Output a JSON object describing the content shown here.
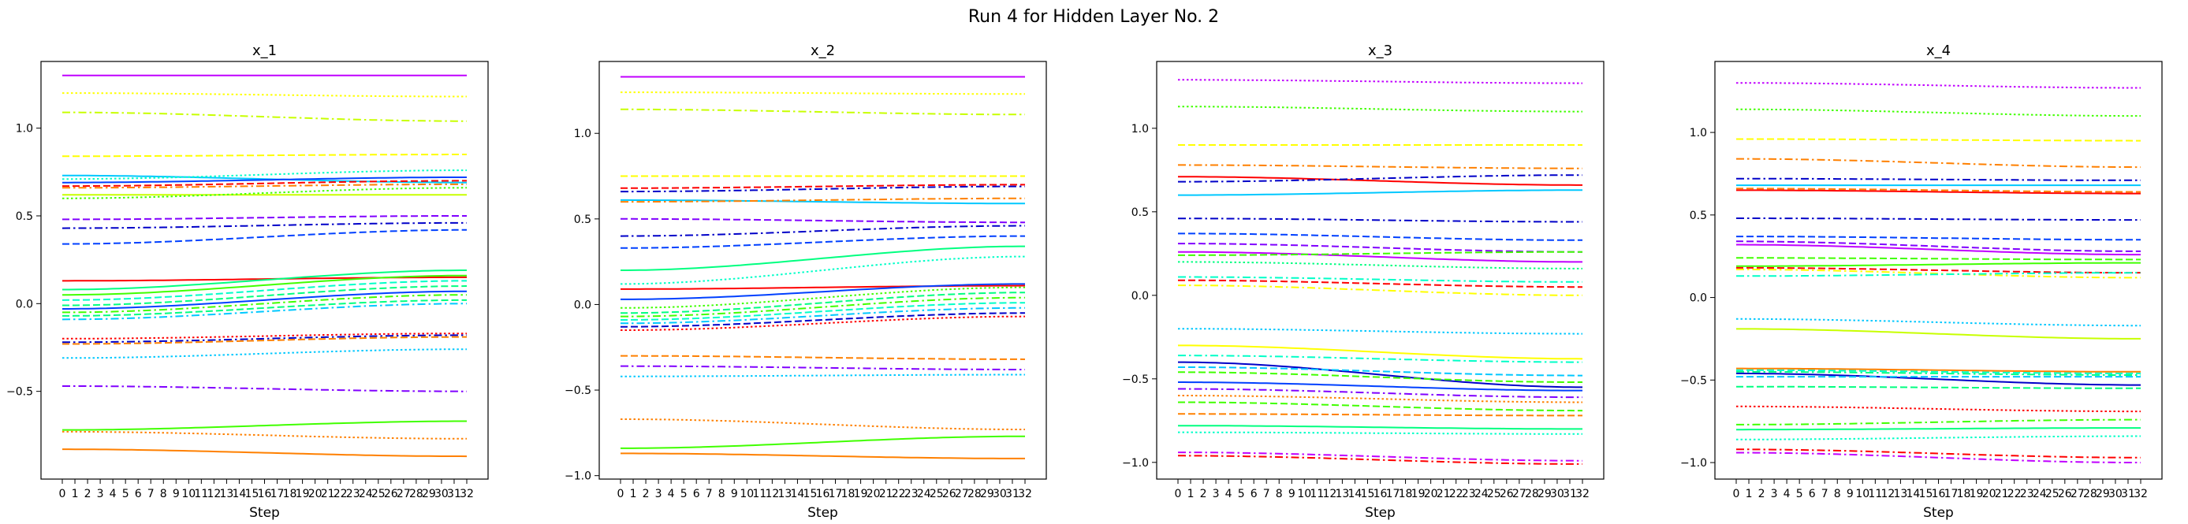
{
  "figure": {
    "title": "Run 4 for Hidden Layer No. 2"
  },
  "palette": [
    "#ff0000",
    "#ff8000",
    "#ffff00",
    "#c8ff00",
    "#40ff00",
    "#00ff80",
    "#00ffc8",
    "#00c8ff",
    "#0040ff",
    "#0000c8",
    "#8000ff",
    "#c000ff"
  ],
  "chart_data": [
    {
      "type": "line",
      "title": "x_1",
      "xlabel": "Step",
      "ylabel": "",
      "xlim": [
        0,
        32
      ],
      "ylim": [
        -1.0,
        1.38
      ],
      "xticks": [
        0,
        1,
        2,
        3,
        4,
        5,
        6,
        7,
        8,
        9,
        10,
        11,
        12,
        13,
        14,
        15,
        16,
        17,
        18,
        19,
        20,
        21,
        22,
        23,
        24,
        25,
        26,
        27,
        28,
        29,
        30,
        31,
        32
      ],
      "yticks": [
        -0.5,
        0.0,
        0.5,
        1.0
      ],
      "ytick_labels": [
        "−0.5",
        "0.0",
        "0.5",
        "1.0"
      ],
      "grid": false,
      "series": [
        {
          "start": 1.3,
          "end": 1.3,
          "color": "#c000ff",
          "dash": "solid"
        },
        {
          "start": 1.2,
          "end": 1.18,
          "color": "#ffff00",
          "dash": "dotted"
        },
        {
          "start": 1.09,
          "end": 1.04,
          "color": "#c8ff00",
          "dash": "dashdot"
        },
        {
          "start": 0.84,
          "end": 0.85,
          "color": "#ffff00",
          "dash": "dashed"
        },
        {
          "start": 0.73,
          "end": 0.69,
          "color": "#00c8ff",
          "dash": "solid"
        },
        {
          "start": 0.71,
          "end": 0.76,
          "color": "#00ffc8",
          "dash": "dotted"
        },
        {
          "start": 0.69,
          "end": 0.72,
          "color": "#0040ff",
          "dash": "solid"
        },
        {
          "start": 0.67,
          "end": 0.7,
          "color": "#ff0000",
          "dash": "dashed"
        },
        {
          "start": 0.66,
          "end": 0.68,
          "color": "#ff8000",
          "dash": "dashdot"
        },
        {
          "start": 0.62,
          "end": 0.62,
          "color": "#c8ff00",
          "dash": "solid"
        },
        {
          "start": 0.6,
          "end": 0.66,
          "color": "#40ff00",
          "dash": "dotted"
        },
        {
          "start": 0.48,
          "end": 0.5,
          "color": "#8000ff",
          "dash": "dashed"
        },
        {
          "start": 0.43,
          "end": 0.46,
          "color": "#0000c8",
          "dash": "dashdot"
        },
        {
          "start": 0.34,
          "end": 0.42,
          "color": "#0040ff",
          "dash": "dashed"
        },
        {
          "start": 0.13,
          "end": 0.15,
          "color": "#ff0000",
          "dash": "solid"
        },
        {
          "start": 0.08,
          "end": 0.19,
          "color": "#00ff80",
          "dash": "solid"
        },
        {
          "start": 0.05,
          "end": 0.16,
          "color": "#40ff00",
          "dash": "solid"
        },
        {
          "start": 0.02,
          "end": 0.13,
          "color": "#00ffc8",
          "dash": "dashed"
        },
        {
          "start": -0.01,
          "end": 0.1,
          "color": "#00ff80",
          "dash": "dashed"
        },
        {
          "start": -0.03,
          "end": 0.07,
          "color": "#0040ff",
          "dash": "solid"
        },
        {
          "start": -0.05,
          "end": 0.05,
          "color": "#40ff00",
          "dash": "dashdot"
        },
        {
          "start": -0.07,
          "end": 0.02,
          "color": "#00ff80",
          "dash": "dashed"
        },
        {
          "start": -0.09,
          "end": 0.0,
          "color": "#00c8ff",
          "dash": "dashdot"
        },
        {
          "start": -0.2,
          "end": -0.17,
          "color": "#ff0000",
          "dash": "dotted"
        },
        {
          "start": -0.22,
          "end": -0.18,
          "color": "#0000c8",
          "dash": "dashdot"
        },
        {
          "start": -0.23,
          "end": -0.19,
          "color": "#ff8000",
          "dash": "dashed"
        },
        {
          "start": -0.31,
          "end": -0.26,
          "color": "#00c8ff",
          "dash": "dotted"
        },
        {
          "start": -0.47,
          "end": -0.5,
          "color": "#8000ff",
          "dash": "dashdot"
        },
        {
          "start": -0.72,
          "end": -0.67,
          "color": "#40ff00",
          "dash": "solid"
        },
        {
          "start": -0.73,
          "end": -0.77,
          "color": "#ff8000",
          "dash": "dotted"
        },
        {
          "start": -0.83,
          "end": -0.87,
          "color": "#ff8000",
          "dash": "solid"
        }
      ]
    },
    {
      "type": "line",
      "title": "x_2",
      "xlabel": "Step",
      "ylabel": "",
      "xlim": [
        0,
        32
      ],
      "ylim": [
        -1.02,
        1.42
      ],
      "xticks": [
        0,
        1,
        2,
        3,
        4,
        5,
        6,
        7,
        8,
        9,
        10,
        11,
        12,
        13,
        14,
        15,
        16,
        17,
        18,
        19,
        20,
        21,
        22,
        23,
        24,
        25,
        26,
        27,
        28,
        29,
        30,
        31,
        32
      ],
      "yticks": [
        -1.0,
        -0.5,
        0.0,
        0.5,
        1.0
      ],
      "ytick_labels": [
        "−1.0",
        "−0.5",
        "0.0",
        "0.5",
        "1.0"
      ],
      "grid": false,
      "series": [
        {
          "start": 1.33,
          "end": 1.33,
          "color": "#c000ff",
          "dash": "solid"
        },
        {
          "start": 1.24,
          "end": 1.23,
          "color": "#ffff00",
          "dash": "dotted"
        },
        {
          "start": 1.14,
          "end": 1.11,
          "color": "#c8ff00",
          "dash": "dashdot"
        },
        {
          "start": 0.75,
          "end": 0.75,
          "color": "#ffff00",
          "dash": "dashed"
        },
        {
          "start": 0.68,
          "end": 0.7,
          "color": "#ff0000",
          "dash": "dashed"
        },
        {
          "start": 0.66,
          "end": 0.69,
          "color": "#0000c8",
          "dash": "dashdot"
        },
        {
          "start": 0.61,
          "end": 0.59,
          "color": "#00c8ff",
          "dash": "solid"
        },
        {
          "start": 0.6,
          "end": 0.62,
          "color": "#ff8000",
          "dash": "dashdot"
        },
        {
          "start": 0.5,
          "end": 0.48,
          "color": "#8000ff",
          "dash": "dashed"
        },
        {
          "start": 0.4,
          "end": 0.46,
          "color": "#0000c8",
          "dash": "dashdot"
        },
        {
          "start": 0.33,
          "end": 0.4,
          "color": "#0040ff",
          "dash": "dashed"
        },
        {
          "start": 0.2,
          "end": 0.34,
          "color": "#00ff80",
          "dash": "solid"
        },
        {
          "start": 0.12,
          "end": 0.28,
          "color": "#00ffc8",
          "dash": "dotted"
        },
        {
          "start": 0.09,
          "end": 0.11,
          "color": "#ff0000",
          "dash": "solid"
        },
        {
          "start": 0.03,
          "end": 0.12,
          "color": "#0040ff",
          "dash": "solid"
        },
        {
          "start": -0.02,
          "end": 0.1,
          "color": "#40ff00",
          "dash": "dotted"
        },
        {
          "start": -0.05,
          "end": 0.07,
          "color": "#00ff80",
          "dash": "dashed"
        },
        {
          "start": -0.07,
          "end": 0.04,
          "color": "#40ff00",
          "dash": "dashdot"
        },
        {
          "start": -0.09,
          "end": 0.01,
          "color": "#00ffc8",
          "dash": "dashed"
        },
        {
          "start": -0.11,
          "end": -0.02,
          "color": "#00c8ff",
          "dash": "dashdot"
        },
        {
          "start": -0.13,
          "end": -0.05,
          "color": "#0000c8",
          "dash": "dashed"
        },
        {
          "start": -0.15,
          "end": -0.07,
          "color": "#ff0000",
          "dash": "dotted"
        },
        {
          "start": -0.3,
          "end": -0.32,
          "color": "#ff8000",
          "dash": "dashed"
        },
        {
          "start": -0.36,
          "end": -0.38,
          "color": "#8000ff",
          "dash": "dashdot"
        },
        {
          "start": -0.42,
          "end": -0.41,
          "color": "#00c8ff",
          "dash": "dotted"
        },
        {
          "start": -0.67,
          "end": -0.73,
          "color": "#ff8000",
          "dash": "dotted"
        },
        {
          "start": -0.84,
          "end": -0.77,
          "color": "#40ff00",
          "dash": "solid"
        },
        {
          "start": -0.87,
          "end": -0.9,
          "color": "#ff8000",
          "dash": "solid"
        }
      ]
    },
    {
      "type": "line",
      "title": "x_3",
      "xlabel": "Step",
      "ylabel": "",
      "xlim": [
        0,
        32
      ],
      "ylim": [
        -1.1,
        1.4
      ],
      "xticks": [
        0,
        1,
        2,
        3,
        4,
        5,
        6,
        7,
        8,
        9,
        10,
        11,
        12,
        13,
        14,
        15,
        16,
        17,
        18,
        19,
        20,
        21,
        22,
        23,
        24,
        25,
        26,
        27,
        28,
        29,
        30,
        31,
        32
      ],
      "yticks": [
        -1.0,
        -0.5,
        0.0,
        0.5,
        1.0
      ],
      "ytick_labels": [
        "−1.0",
        "−0.5",
        "0.0",
        "0.5",
        "1.0"
      ],
      "grid": false,
      "series": [
        {
          "start": 1.29,
          "end": 1.27,
          "color": "#c000ff",
          "dash": "dotted"
        },
        {
          "start": 1.13,
          "end": 1.1,
          "color": "#40ff00",
          "dash": "dotted"
        },
        {
          "start": 0.9,
          "end": 0.9,
          "color": "#ffff00",
          "dash": "dashed"
        },
        {
          "start": 0.78,
          "end": 0.76,
          "color": "#ff8000",
          "dash": "dashdot"
        },
        {
          "start": 0.71,
          "end": 0.66,
          "color": "#ff0000",
          "dash": "solid"
        },
        {
          "start": 0.68,
          "end": 0.72,
          "color": "#0000c8",
          "dash": "dashdot"
        },
        {
          "start": 0.6,
          "end": 0.63,
          "color": "#00c8ff",
          "dash": "solid"
        },
        {
          "start": 0.46,
          "end": 0.44,
          "color": "#0000c8",
          "dash": "dashdot"
        },
        {
          "start": 0.37,
          "end": 0.33,
          "color": "#0040ff",
          "dash": "dashed"
        },
        {
          "start": 0.31,
          "end": 0.26,
          "color": "#8000ff",
          "dash": "dashed"
        },
        {
          "start": 0.26,
          "end": 0.2,
          "color": "#c000ff",
          "dash": "solid"
        },
        {
          "start": 0.24,
          "end": 0.26,
          "color": "#40ff00",
          "dash": "dashed"
        },
        {
          "start": 0.2,
          "end": 0.16,
          "color": "#00ff80",
          "dash": "dotted"
        },
        {
          "start": 0.11,
          "end": 0.08,
          "color": "#00ffc8",
          "dash": "dashdot"
        },
        {
          "start": 0.09,
          "end": 0.05,
          "color": "#ff0000",
          "dash": "dashed"
        },
        {
          "start": 0.06,
          "end": 0.0,
          "color": "#ffff00",
          "dash": "dashdot"
        },
        {
          "start": -0.2,
          "end": -0.23,
          "color": "#00c8ff",
          "dash": "dotted"
        },
        {
          "start": -0.3,
          "end": -0.38,
          "color": "#ffff00",
          "dash": "solid"
        },
        {
          "start": -0.36,
          "end": -0.4,
          "color": "#00ffc8",
          "dash": "dashdot"
        },
        {
          "start": -0.4,
          "end": -0.55,
          "color": "#0000c8",
          "dash": "solid"
        },
        {
          "start": -0.43,
          "end": -0.48,
          "color": "#00c8ff",
          "dash": "dashed"
        },
        {
          "start": -0.46,
          "end": -0.52,
          "color": "#40ff00",
          "dash": "dashed"
        },
        {
          "start": -0.52,
          "end": -0.57,
          "color": "#0040ff",
          "dash": "solid"
        },
        {
          "start": -0.56,
          "end": -0.61,
          "color": "#8000ff",
          "dash": "dashdot"
        },
        {
          "start": -0.6,
          "end": -0.64,
          "color": "#ff8000",
          "dash": "dotted"
        },
        {
          "start": -0.64,
          "end": -0.69,
          "color": "#40ff00",
          "dash": "dashed"
        },
        {
          "start": -0.71,
          "end": -0.72,
          "color": "#ff8000",
          "dash": "dashed"
        },
        {
          "start": -0.78,
          "end": -0.8,
          "color": "#00ff80",
          "dash": "solid"
        },
        {
          "start": -0.82,
          "end": -0.83,
          "color": "#00ffc8",
          "dash": "dotted"
        },
        {
          "start": -0.94,
          "end": -0.99,
          "color": "#c000ff",
          "dash": "dashdot"
        },
        {
          "start": -0.96,
          "end": -1.01,
          "color": "#ff0000",
          "dash": "dashdot"
        }
      ]
    },
    {
      "type": "line",
      "title": "x_4",
      "xlabel": "Step",
      "ylabel": "",
      "xlim": [
        0,
        32
      ],
      "ylim": [
        -1.1,
        1.43
      ],
      "xticks": [
        0,
        1,
        2,
        3,
        4,
        5,
        6,
        7,
        8,
        9,
        10,
        11,
        12,
        13,
        14,
        15,
        16,
        17,
        18,
        19,
        20,
        21,
        22,
        23,
        24,
        25,
        26,
        27,
        28,
        29,
        30,
        31,
        32
      ],
      "yticks": [
        -1.0,
        -0.5,
        0.0,
        0.5,
        1.0
      ],
      "ytick_labels": [
        "−1.0",
        "−0.5",
        "0.0",
        "0.5",
        "1.0"
      ],
      "grid": false,
      "series": [
        {
          "start": 1.3,
          "end": 1.27,
          "color": "#c000ff",
          "dash": "dotted"
        },
        {
          "start": 1.14,
          "end": 1.1,
          "color": "#40ff00",
          "dash": "dotted"
        },
        {
          "start": 0.96,
          "end": 0.95,
          "color": "#ffff00",
          "dash": "dashed"
        },
        {
          "start": 0.84,
          "end": 0.79,
          "color": "#ff8000",
          "dash": "dashdot"
        },
        {
          "start": 0.72,
          "end": 0.71,
          "color": "#0000c8",
          "dash": "dashdot"
        },
        {
          "start": 0.68,
          "end": 0.68,
          "color": "#00c8ff",
          "dash": "solid"
        },
        {
          "start": 0.66,
          "end": 0.64,
          "color": "#ff8000",
          "dash": "dashed"
        },
        {
          "start": 0.65,
          "end": 0.63,
          "color": "#ff0000",
          "dash": "solid"
        },
        {
          "start": 0.48,
          "end": 0.47,
          "color": "#0000c8",
          "dash": "dashdot"
        },
        {
          "start": 0.37,
          "end": 0.35,
          "color": "#0040ff",
          "dash": "dashed"
        },
        {
          "start": 0.34,
          "end": 0.28,
          "color": "#8000ff",
          "dash": "dashed"
        },
        {
          "start": 0.32,
          "end": 0.26,
          "color": "#c000ff",
          "dash": "solid"
        },
        {
          "start": 0.24,
          "end": 0.23,
          "color": "#40ff00",
          "dash": "dashed"
        },
        {
          "start": 0.19,
          "end": 0.21,
          "color": "#40ff00",
          "dash": "solid"
        },
        {
          "start": 0.18,
          "end": 0.15,
          "color": "#ff0000",
          "dash": "dashed"
        },
        {
          "start": 0.17,
          "end": 0.12,
          "color": "#ffff00",
          "dash": "dashdot"
        },
        {
          "start": 0.13,
          "end": 0.15,
          "color": "#00ffc8",
          "dash": "dashdot"
        },
        {
          "start": -0.13,
          "end": -0.17,
          "color": "#00c8ff",
          "dash": "dotted"
        },
        {
          "start": -0.19,
          "end": -0.25,
          "color": "#c8ff00",
          "dash": "solid"
        },
        {
          "start": -0.43,
          "end": -0.45,
          "color": "#ff8000",
          "dash": "solid"
        },
        {
          "start": -0.44,
          "end": -0.46,
          "color": "#00ffc8",
          "dash": "dashed"
        },
        {
          "start": -0.45,
          "end": -0.47,
          "color": "#00ff80",
          "dash": "dashdot"
        },
        {
          "start": -0.46,
          "end": -0.53,
          "color": "#0000c8",
          "dash": "solid"
        },
        {
          "start": -0.48,
          "end": -0.48,
          "color": "#00c8ff",
          "dash": "dashed"
        },
        {
          "start": -0.54,
          "end": -0.55,
          "color": "#00ff80",
          "dash": "dashed"
        },
        {
          "start": -0.66,
          "end": -0.69,
          "color": "#ff0000",
          "dash": "dotted"
        },
        {
          "start": -0.77,
          "end": -0.74,
          "color": "#40ff00",
          "dash": "dashdot"
        },
        {
          "start": -0.8,
          "end": -0.79,
          "color": "#00ff80",
          "dash": "solid"
        },
        {
          "start": -0.86,
          "end": -0.84,
          "color": "#00ffc8",
          "dash": "dotted"
        },
        {
          "start": -0.92,
          "end": -0.97,
          "color": "#ff0000",
          "dash": "dashdot"
        },
        {
          "start": -0.94,
          "end": -1.0,
          "color": "#c000ff",
          "dash": "dashdot"
        }
      ]
    }
  ]
}
